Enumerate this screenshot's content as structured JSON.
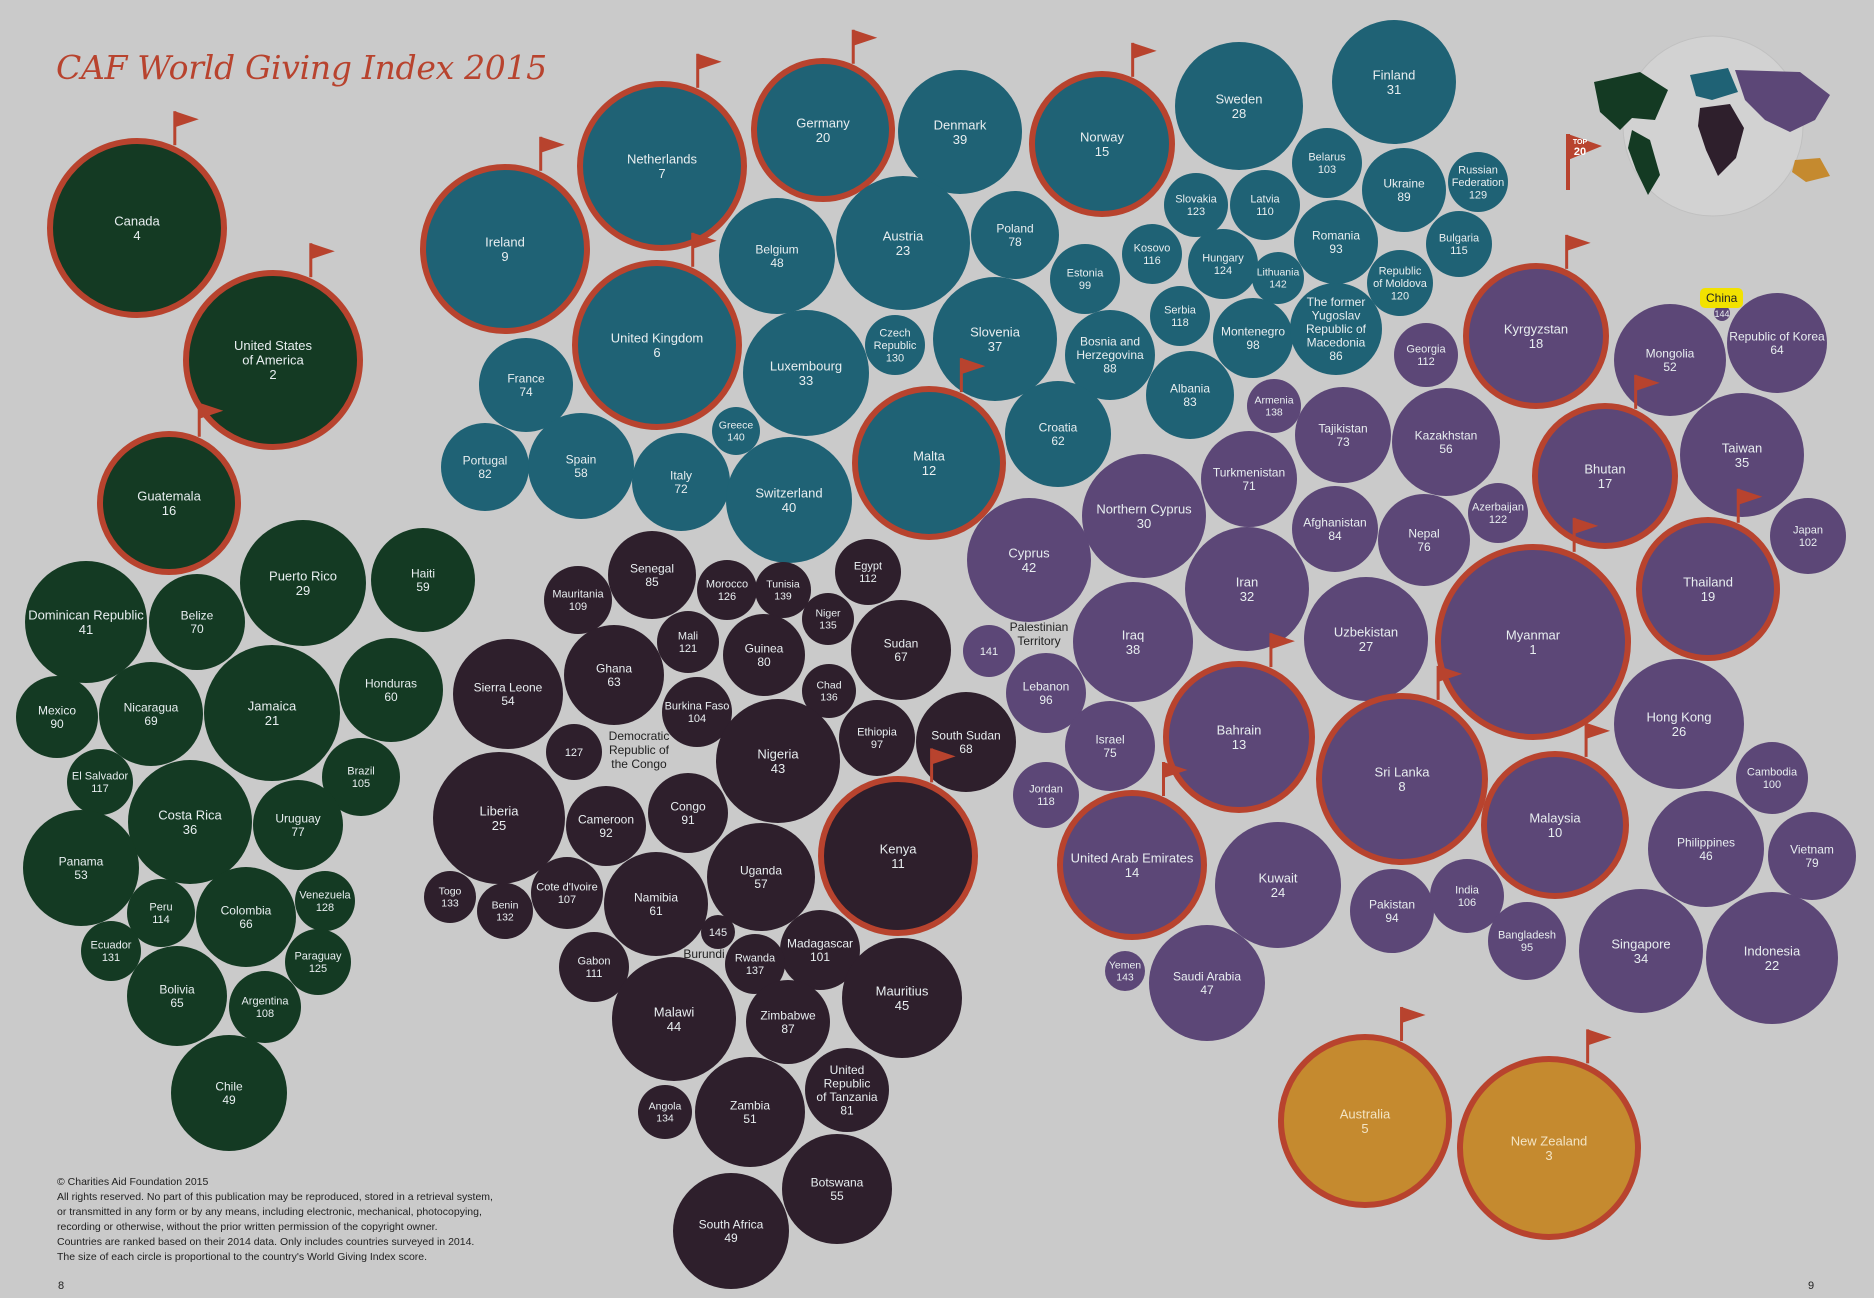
{
  "title": "CAF World Giving Index 2015",
  "legend": {
    "flag_label_line1": "TOP",
    "flag_label_line2": "20",
    "tooltip": "China",
    "tooltip_rank": "144"
  },
  "footer": {
    "copyright": "© Charities Aid Foundation 2015",
    "rights_1": "All rights reserved. No part of this publication may be reproduced, stored in a retrieval system,",
    "rights_2": "or transmitted in any form or by any means, including electronic, mechanical, photocopying,",
    "rights_3": "recording or otherwise, without the prior written permission of the copyright owner.",
    "note_1": "Countries are ranked based on their 2014 data. Only includes countries surveyed in 2014.",
    "note_2": "The size of each circle is proportional to the country's World Giving Index score."
  },
  "page_left": "8",
  "page_right": "9",
  "colors": {
    "americas": "#143a23",
    "europe": "#1f6275",
    "africa": "#2e1f2c",
    "asia": "#5c4777",
    "oceania": "#c58a2f",
    "top20_ring": "#b8432e",
    "background": "#cacaca"
  },
  "countries": [
    {
      "name": "Canada",
      "rank": 4,
      "region": "americas"
    },
    {
      "name": "United States of America",
      "rank": 2,
      "region": "americas"
    },
    {
      "name": "Guatemala",
      "rank": 16,
      "region": "americas"
    },
    {
      "name": "Dominican Republic",
      "rank": 41,
      "region": "americas"
    },
    {
      "name": "Belize",
      "rank": 70,
      "region": "americas"
    },
    {
      "name": "Puerto Rico",
      "rank": 29,
      "region": "americas"
    },
    {
      "name": "Haiti",
      "rank": 59,
      "region": "americas"
    },
    {
      "name": "Mexico",
      "rank": 90,
      "region": "americas"
    },
    {
      "name": "Nicaragua",
      "rank": 69,
      "region": "americas"
    },
    {
      "name": "Jamaica",
      "rank": 21,
      "region": "americas"
    },
    {
      "name": "Honduras",
      "rank": 60,
      "region": "americas"
    },
    {
      "name": "El Salvador",
      "rank": 117,
      "region": "americas"
    },
    {
      "name": "Brazil",
      "rank": 105,
      "region": "americas"
    },
    {
      "name": "Costa Rica",
      "rank": 36,
      "region": "americas"
    },
    {
      "name": "Uruguay",
      "rank": 77,
      "region": "americas"
    },
    {
      "name": "Panama",
      "rank": 53,
      "region": "americas"
    },
    {
      "name": "Peru",
      "rank": 114,
      "region": "americas"
    },
    {
      "name": "Colombia",
      "rank": 66,
      "region": "americas"
    },
    {
      "name": "Venezuela",
      "rank": 128,
      "region": "americas"
    },
    {
      "name": "Ecuador",
      "rank": 131,
      "region": "americas"
    },
    {
      "name": "Paraguay",
      "rank": 125,
      "region": "americas"
    },
    {
      "name": "Bolivia",
      "rank": 65,
      "region": "americas"
    },
    {
      "name": "Argentina",
      "rank": 108,
      "region": "americas"
    },
    {
      "name": "Chile",
      "rank": 49,
      "region": "americas"
    },
    {
      "name": "Ireland",
      "rank": 9,
      "region": "europe"
    },
    {
      "name": "Netherlands",
      "rank": 7,
      "region": "europe"
    },
    {
      "name": "Germany",
      "rank": 20,
      "region": "europe"
    },
    {
      "name": "Denmark",
      "rank": 39,
      "region": "europe"
    },
    {
      "name": "Norway",
      "rank": 15,
      "region": "europe"
    },
    {
      "name": "Sweden",
      "rank": 28,
      "region": "europe"
    },
    {
      "name": "Finland",
      "rank": 31,
      "region": "europe"
    },
    {
      "name": "Belarus",
      "rank": 103,
      "region": "europe"
    },
    {
      "name": "Ukraine",
      "rank": 89,
      "region": "europe"
    },
    {
      "name": "Russian Federation",
      "rank": 129,
      "region": "europe"
    },
    {
      "name": "Slovakia",
      "rank": 123,
      "region": "europe"
    },
    {
      "name": "Latvia",
      "rank": 110,
      "region": "europe"
    },
    {
      "name": "Belgium",
      "rank": 48,
      "region": "europe"
    },
    {
      "name": "Austria",
      "rank": 23,
      "region": "europe"
    },
    {
      "name": "Poland",
      "rank": 78,
      "region": "europe"
    },
    {
      "name": "Romania",
      "rank": 93,
      "region": "europe"
    },
    {
      "name": "Bulgaria",
      "rank": 115,
      "region": "europe"
    },
    {
      "name": "Estonia",
      "rank": 99,
      "region": "europe"
    },
    {
      "name": "Kosovo",
      "rank": 116,
      "region": "europe"
    },
    {
      "name": "Hungary",
      "rank": 124,
      "region": "europe"
    },
    {
      "name": "Lithuania",
      "rank": 142,
      "region": "europe"
    },
    {
      "name": "Republic of Moldova",
      "rank": 120,
      "region": "europe"
    },
    {
      "name": "United Kingdom",
      "rank": 6,
      "region": "europe"
    },
    {
      "name": "France",
      "rank": 74,
      "region": "europe"
    },
    {
      "name": "Luxembourg",
      "rank": 33,
      "region": "europe"
    },
    {
      "name": "Czech Republic",
      "rank": 130,
      "region": "europe"
    },
    {
      "name": "Slovenia",
      "rank": 37,
      "region": "europe"
    },
    {
      "name": "Bosnia and Herzegovina",
      "rank": 88,
      "region": "europe"
    },
    {
      "name": "Serbia",
      "rank": 118,
      "region": "europe"
    },
    {
      "name": "Montenegro",
      "rank": 98,
      "region": "europe"
    },
    {
      "name": "The former Yugoslav Republic of Macedonia",
      "rank": 86,
      "region": "europe"
    },
    {
      "name": "Albania",
      "rank": 83,
      "region": "europe"
    },
    {
      "name": "Greece",
      "rank": 140,
      "region": "europe"
    },
    {
      "name": "Portugal",
      "rank": 82,
      "region": "europe"
    },
    {
      "name": "Spain",
      "rank": 58,
      "region": "europe"
    },
    {
      "name": "Italy",
      "rank": 72,
      "region": "europe"
    },
    {
      "name": "Switzerland",
      "rank": 40,
      "region": "europe"
    },
    {
      "name": "Malta",
      "rank": 12,
      "region": "europe"
    },
    {
      "name": "Croatia",
      "rank": 62,
      "region": "europe"
    },
    {
      "name": "Senegal",
      "rank": 85,
      "region": "africa"
    },
    {
      "name": "Morocco",
      "rank": 126,
      "region": "africa"
    },
    {
      "name": "Tunisia",
      "rank": 139,
      "region": "africa"
    },
    {
      "name": "Egypt",
      "rank": 112,
      "region": "africa"
    },
    {
      "name": "Mauritania",
      "rank": 109,
      "region": "africa"
    },
    {
      "name": "Niger",
      "rank": 135,
      "region": "africa"
    },
    {
      "name": "Mali",
      "rank": 121,
      "region": "africa"
    },
    {
      "name": "Guinea",
      "rank": 80,
      "region": "africa"
    },
    {
      "name": "Sudan",
      "rank": 67,
      "region": "africa"
    },
    {
      "name": "Sierra Leone",
      "rank": 54,
      "region": "africa"
    },
    {
      "name": "Ghana",
      "rank": 63,
      "region": "africa"
    },
    {
      "name": "Chad",
      "rank": 136,
      "region": "africa"
    },
    {
      "name": "Burkina Faso",
      "rank": 104,
      "region": "africa"
    },
    {
      "name": "Democratic Republic of the Congo",
      "rank": 127,
      "region": "africa"
    },
    {
      "name": "Nigeria",
      "rank": 43,
      "region": "africa"
    },
    {
      "name": "Ethiopia",
      "rank": 97,
      "region": "africa"
    },
    {
      "name": "South Sudan",
      "rank": 68,
      "region": "africa"
    },
    {
      "name": "Liberia",
      "rank": 25,
      "region": "africa"
    },
    {
      "name": "Cameroon",
      "rank": 92,
      "region": "africa"
    },
    {
      "name": "Congo",
      "rank": 91,
      "region": "africa"
    },
    {
      "name": "Kenya",
      "rank": 11,
      "region": "africa"
    },
    {
      "name": "Uganda",
      "rank": 57,
      "region": "africa"
    },
    {
      "name": "Togo",
      "rank": 133,
      "region": "africa"
    },
    {
      "name": "Benin",
      "rank": 132,
      "region": "africa"
    },
    {
      "name": "Cote d'Ivoire",
      "rank": 107,
      "region": "africa"
    },
    {
      "name": "Namibia",
      "rank": 61,
      "region": "africa"
    },
    {
      "name": "Burundi",
      "rank": 145,
      "region": "africa"
    },
    {
      "name": "Madagascar",
      "rank": 101,
      "region": "africa"
    },
    {
      "name": "Gabon",
      "rank": 111,
      "region": "africa"
    },
    {
      "name": "Rwanda",
      "rank": 137,
      "region": "africa"
    },
    {
      "name": "Mauritius",
      "rank": 45,
      "region": "africa"
    },
    {
      "name": "Malawi",
      "rank": 44,
      "region": "africa"
    },
    {
      "name": "Zimbabwe",
      "rank": 87,
      "region": "africa"
    },
    {
      "name": "United Republic of Tanzania",
      "rank": 81,
      "region": "africa"
    },
    {
      "name": "Angola",
      "rank": 134,
      "region": "africa"
    },
    {
      "name": "Zambia",
      "rank": 51,
      "region": "africa"
    },
    {
      "name": "Botswana",
      "rank": 55,
      "region": "africa"
    },
    {
      "name": "South Africa",
      "rank": 49,
      "region": "africa"
    },
    {
      "name": "Georgia",
      "rank": 112,
      "region": "asia"
    },
    {
      "name": "Kyrgyzstan",
      "rank": 18,
      "region": "asia"
    },
    {
      "name": "Mongolia",
      "rank": 52,
      "region": "asia"
    },
    {
      "name": "Republic of Korea",
      "rank": 64,
      "region": "asia"
    },
    {
      "name": "Armenia",
      "rank": 138,
      "region": "asia"
    },
    {
      "name": "Tajikistan",
      "rank": 73,
      "region": "asia"
    },
    {
      "name": "Kazakhstan",
      "rank": 56,
      "region": "asia"
    },
    {
      "name": "Bhutan",
      "rank": 17,
      "region": "asia"
    },
    {
      "name": "Taiwan",
      "rank": 35,
      "region": "asia"
    },
    {
      "name": "Turkmenistan",
      "rank": 71,
      "region": "asia"
    },
    {
      "name": "Northern Cyprus",
      "rank": 30,
      "region": "asia"
    },
    {
      "name": "Afghanistan",
      "rank": 84,
      "region": "asia"
    },
    {
      "name": "Azerbaijan",
      "rank": 122,
      "region": "asia"
    },
    {
      "name": "Japan",
      "rank": 102,
      "region": "asia"
    },
    {
      "name": "Cyprus",
      "rank": 42,
      "region": "asia"
    },
    {
      "name": "Nepal",
      "rank": 76,
      "region": "asia"
    },
    {
      "name": "Thailand",
      "rank": 19,
      "region": "asia"
    },
    {
      "name": "Iran",
      "rank": 32,
      "region": "asia"
    },
    {
      "name": "Palestinian Territory",
      "rank": 141,
      "region": "asia"
    },
    {
      "name": "Iraq",
      "rank": 38,
      "region": "asia"
    },
    {
      "name": "Uzbekistan",
      "rank": 27,
      "region": "asia"
    },
    {
      "name": "Myanmar",
      "rank": 1,
      "region": "asia"
    },
    {
      "name": "Lebanon",
      "rank": 96,
      "region": "asia"
    },
    {
      "name": "Hong Kong",
      "rank": 26,
      "region": "asia"
    },
    {
      "name": "Bahrain",
      "rank": 13,
      "region": "asia"
    },
    {
      "name": "Sri Lanka",
      "rank": 8,
      "region": "asia"
    },
    {
      "name": "Israel",
      "rank": 75,
      "region": "asia"
    },
    {
      "name": "Cambodia",
      "rank": 100,
      "region": "asia"
    },
    {
      "name": "Jordan",
      "rank": 118,
      "region": "asia"
    },
    {
      "name": "Malaysia",
      "rank": 10,
      "region": "asia"
    },
    {
      "name": "Philippines",
      "rank": 46,
      "region": "asia"
    },
    {
      "name": "Vietnam",
      "rank": 79,
      "region": "asia"
    },
    {
      "name": "United Arab Emirates",
      "rank": 14,
      "region": "asia"
    },
    {
      "name": "Kuwait",
      "rank": 24,
      "region": "asia"
    },
    {
      "name": "Pakistan",
      "rank": 94,
      "region": "asia"
    },
    {
      "name": "India",
      "rank": 106,
      "region": "asia"
    },
    {
      "name": "Bangladesh",
      "rank": 95,
      "region": "asia"
    },
    {
      "name": "Singapore",
      "rank": 34,
      "region": "asia"
    },
    {
      "name": "Indonesia",
      "rank": 22,
      "region": "asia"
    },
    {
      "name": "Yemen",
      "rank": 143,
      "region": "asia"
    },
    {
      "name": "Saudi Arabia",
      "rank": 47,
      "region": "asia"
    },
    {
      "name": "Australia",
      "rank": 5,
      "region": "oceania"
    },
    {
      "name": "New Zealand",
      "rank": 3,
      "region": "oceania"
    }
  ]
}
